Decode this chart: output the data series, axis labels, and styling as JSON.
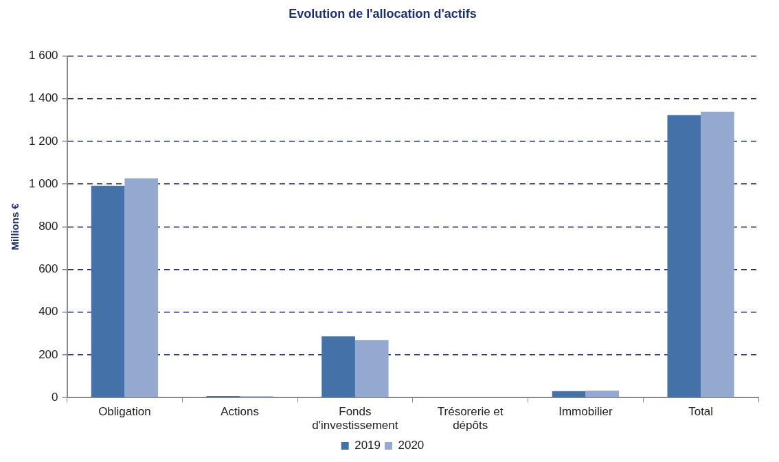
{
  "chart_data": {
    "type": "bar",
    "title": "Evolution de l'allocation d'actifs",
    "ylabel": "Millions €",
    "categories": [
      "Obligation",
      "Actions",
      "Fonds d'investissement",
      "Trésorerie et dépôts",
      "Immobilier",
      "Total"
    ],
    "series": [
      {
        "name": "2019",
        "color": "#4472a8",
        "values": [
          992,
          7,
          287,
          0,
          30,
          1323
        ]
      },
      {
        "name": "2020",
        "color": "#95a9d0",
        "values": [
          1027,
          6,
          270,
          0,
          33,
          1339
        ]
      }
    ],
    "ylim": [
      0,
      1600
    ],
    "yticks": [
      0,
      200,
      400,
      600,
      800,
      {
        "value": 1000,
        "label": "1 000"
      },
      {
        "value": 1200,
        "label": "1 200"
      },
      {
        "value": 1400,
        "label": "1 400"
      },
      {
        "value": 1600,
        "label": "1 600"
      }
    ],
    "grid": "y",
    "legend": "bottom"
  }
}
